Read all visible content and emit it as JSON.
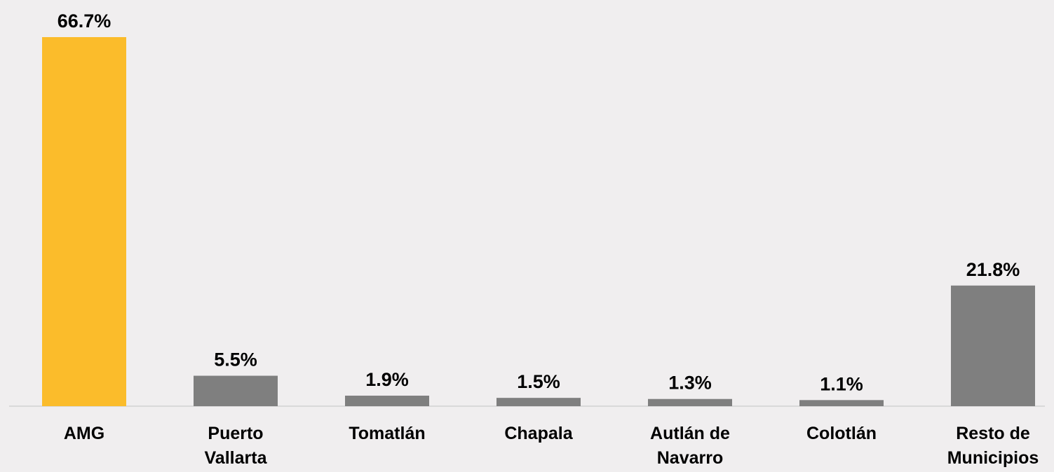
{
  "chart_data": {
    "type": "bar",
    "categories": [
      [
        "AMG"
      ],
      [
        "Puerto",
        "Vallarta"
      ],
      [
        "Tomatlán"
      ],
      [
        "Chapala"
      ],
      [
        "Autlán de",
        "Navarro"
      ],
      [
        "Colotlán"
      ],
      [
        "Resto de",
        "Municipios"
      ]
    ],
    "values": [
      66.7,
      5.5,
      1.9,
      1.5,
      1.3,
      1.1,
      21.8
    ],
    "data_labels": [
      "66.7%",
      "5.5%",
      "1.9%",
      "1.5%",
      "1.3%",
      "1.1%",
      "21.8%"
    ],
    "bar_colors": [
      "#fbbc2b",
      "#7f7f7f",
      "#7f7f7f",
      "#7f7f7f",
      "#7f7f7f",
      "#7f7f7f",
      "#7f7f7f"
    ],
    "axis_color": "#d9d9d9",
    "title": "",
    "xlabel": "",
    "ylabel": "",
    "ylim": [
      0,
      66.7
    ],
    "grid": false,
    "legend": "none"
  }
}
